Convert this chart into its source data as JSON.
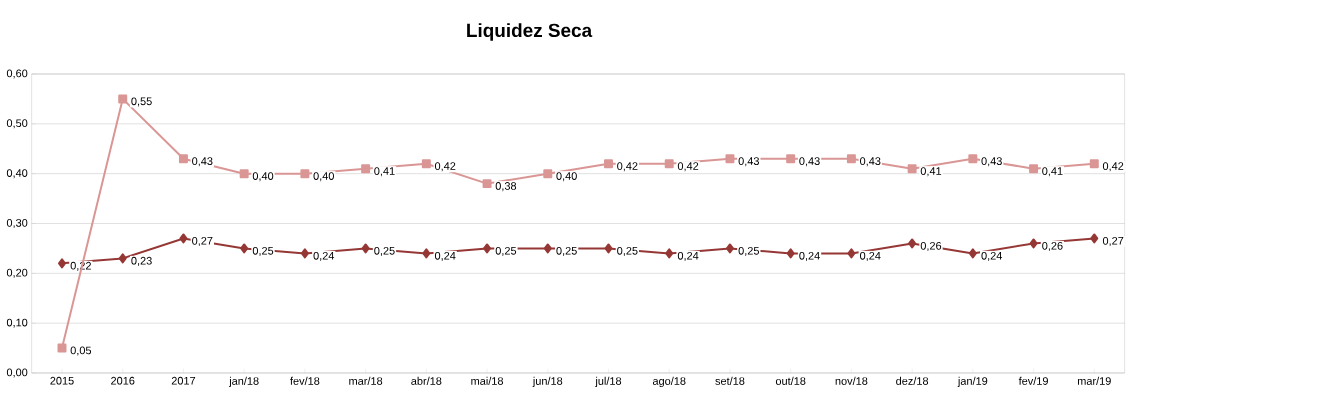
{
  "chart_data": {
    "type": "line",
    "title": "Liquidez Seca",
    "categories": [
      "2015",
      "2016",
      "2017",
      "jan/18",
      "fev/18",
      "mar/18",
      "abr/18",
      "mai/18",
      "jun/18",
      "jul/18",
      "ago/18",
      "set/18",
      "out/18",
      "nov/18",
      "dez/18",
      "jan/19",
      "fev/19",
      "mar/19"
    ],
    "series": [
      {
        "color": "#953735",
        "marker": "diamond",
        "values": [
          0.22,
          0.23,
          0.27,
          0.25,
          0.24,
          0.25,
          0.24,
          0.25,
          0.25,
          0.25,
          0.24,
          0.25,
          0.24,
          0.24,
          0.26,
          0.24,
          0.26,
          0.27
        ],
        "value_labels": [
          "0,22",
          "0,23",
          "0,27",
          "0,25",
          "0,24",
          "0,25",
          "0,24",
          "0,25",
          "0,25",
          "0,25",
          "0,24",
          "0,25",
          "0,24",
          "0,24",
          "0,26",
          "0,24",
          "0,26",
          "0,27"
        ]
      },
      {
        "color": "#d99694",
        "marker": "square",
        "values": [
          0.05,
          0.55,
          0.43,
          0.4,
          0.4,
          0.41,
          0.42,
          0.38,
          0.4,
          0.42,
          0.42,
          0.43,
          0.43,
          0.43,
          0.41,
          0.43,
          0.41,
          0.42
        ],
        "value_labels": [
          "0,05",
          "0,55",
          "0,43",
          "0,40",
          "0,40",
          "0,41",
          "0,42",
          "0,38",
          "0,40",
          "0,42",
          "0,42",
          "0,43",
          "0,43",
          "0,43",
          "0,41",
          "0,43",
          "0,41",
          "0,42"
        ]
      }
    ],
    "ylim": [
      0,
      0.6
    ],
    "yticks": [
      {
        "value": 0,
        "label": "0,00"
      },
      {
        "value": 0.1,
        "label": "0,10"
      },
      {
        "value": 0.2,
        "label": "0,20"
      },
      {
        "value": 0.3,
        "label": "0,30"
      },
      {
        "value": 0.4,
        "label": "0,40"
      },
      {
        "value": 0.5,
        "label": "0,50"
      },
      {
        "value": 0.6,
        "label": "0,60"
      }
    ],
    "grid": "y"
  }
}
